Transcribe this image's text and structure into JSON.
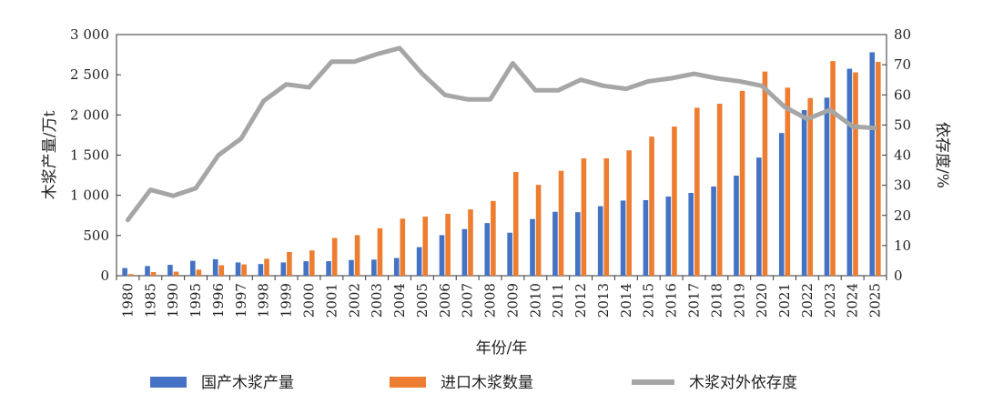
{
  "chart_data": {
    "type": "bar",
    "xlabel": "年份/年",
    "ylabel": "木浆产量/万t",
    "y2label": "依存度/%",
    "ylim": [
      0,
      3000
    ],
    "y2lim": [
      0,
      80
    ],
    "yticks": [
      "0",
      "500",
      "1 000",
      "1 500",
      "2 000",
      "2 500",
      "3 000"
    ],
    "y2ticks": [
      "0",
      "10",
      "20",
      "30",
      "40",
      "50",
      "60",
      "70",
      "80"
    ],
    "grid": false,
    "legend_position": "bottom",
    "categories": [
      "1980",
      "1985",
      "1990",
      "1995",
      "1996",
      "1997",
      "1998",
      "1999",
      "2000",
      "2001",
      "2002",
      "2003",
      "2004",
      "2005",
      "2006",
      "2007",
      "2008",
      "2009",
      "2010",
      "2011",
      "2012",
      "2013",
      "2014",
      "2015",
      "2016",
      "2017",
      "2018",
      "2019",
      "2020",
      "2021",
      "2022",
      "2023",
      "2024",
      "2025"
    ],
    "series": [
      {
        "name": "国产木浆产量",
        "type": "bar",
        "axis": "left",
        "color": "#4472c4",
        "values": [
          95,
          120,
          135,
          185,
          205,
          165,
          145,
          165,
          180,
          180,
          195,
          200,
          220,
          355,
          505,
          580,
          655,
          535,
          705,
          795,
          790,
          865,
          935,
          940,
          985,
          1030,
          1110,
          1245,
          1470,
          1775,
          2060,
          2215,
          2575,
          2780
        ]
      },
      {
        "name": "进口木浆数量",
        "type": "bar",
        "axis": "left",
        "color": "#ed7d31",
        "values": [
          20,
          45,
          50,
          75,
          130,
          140,
          210,
          295,
          315,
          470,
          505,
          590,
          710,
          735,
          770,
          825,
          930,
          1290,
          1130,
          1305,
          1460,
          1460,
          1560,
          1730,
          1855,
          2090,
          2140,
          2300,
          2540,
          2340,
          2210,
          2670,
          2530,
          2660
        ]
      },
      {
        "name": "木浆对外依存度",
        "type": "line",
        "axis": "right",
        "color": "#a6a6a6",
        "values": [
          18.5,
          28.5,
          26.5,
          29,
          40,
          45.5,
          58,
          63.5,
          62.5,
          71,
          71,
          73.5,
          75.5,
          67,
          60,
          58.5,
          58.5,
          70.5,
          61.5,
          61.5,
          65,
          63,
          62,
          64.5,
          65.5,
          67,
          65.5,
          64.5,
          63,
          56,
          52,
          55,
          49.5,
          49
        ]
      }
    ]
  }
}
